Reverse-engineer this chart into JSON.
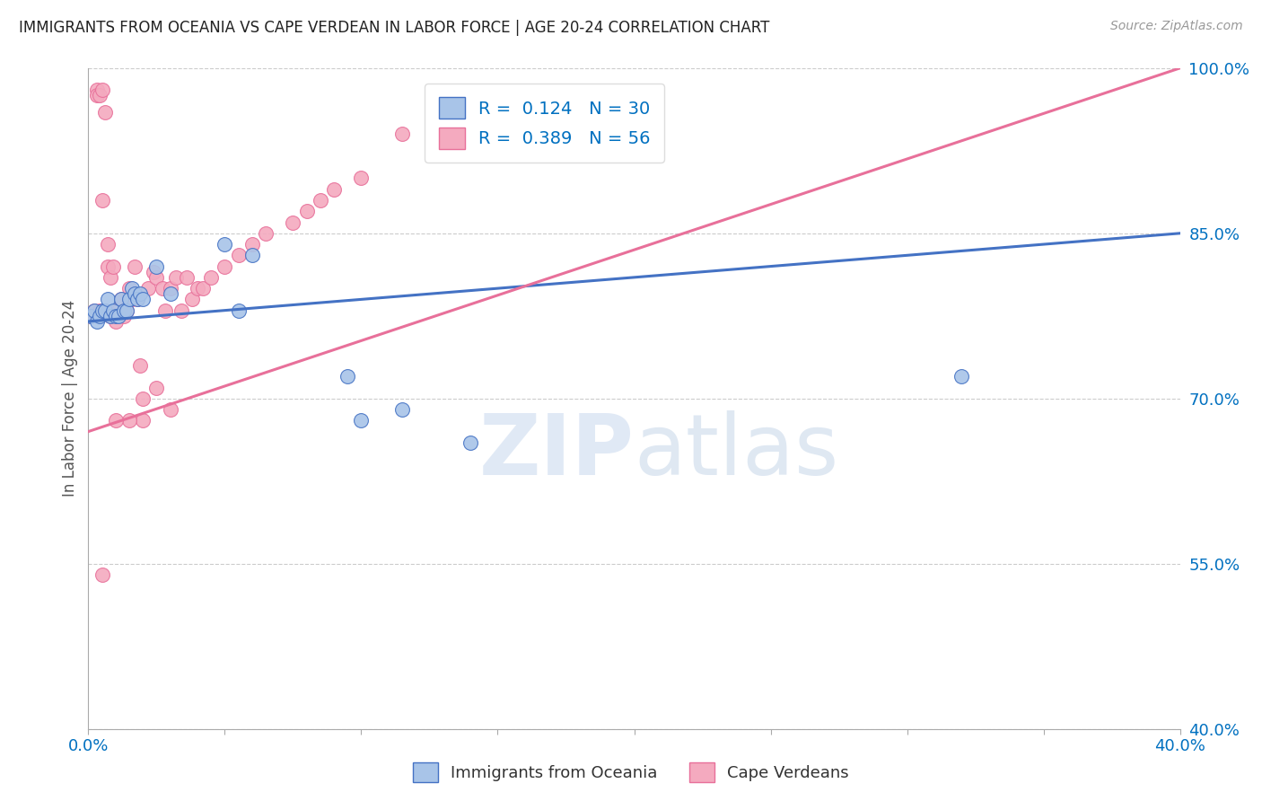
{
  "title": "IMMIGRANTS FROM OCEANIA VS CAPE VERDEAN IN LABOR FORCE | AGE 20-24 CORRELATION CHART",
  "source": "Source: ZipAtlas.com",
  "ylabel": "In Labor Force | Age 20-24",
  "legend_label1": "Immigrants from Oceania",
  "legend_label2": "Cape Verdeans",
  "r1": 0.124,
  "n1": 30,
  "r2": 0.389,
  "n2": 56,
  "xlim": [
    0.0,
    0.4
  ],
  "ylim": [
    0.4,
    1.0
  ],
  "xticks": [
    0.0,
    0.05,
    0.1,
    0.15,
    0.2,
    0.25,
    0.3,
    0.35,
    0.4
  ],
  "yticks": [
    0.4,
    0.55,
    0.7,
    0.85,
    1.0
  ],
  "color_blue": "#A8C4E8",
  "color_pink": "#F4AABF",
  "color_blue_line": "#4472C4",
  "color_pink_line": "#E8709A",
  "color_r_text": "#0070C0",
  "color_axis_text": "#0070C0",
  "background": "#FFFFFF",
  "watermark_zip": "ZIP",
  "watermark_atlas": "atlas",
  "oceania_x": [
    0.001,
    0.002,
    0.003,
    0.004,
    0.005,
    0.006,
    0.007,
    0.008,
    0.009,
    0.01,
    0.011,
    0.012,
    0.013,
    0.014,
    0.015,
    0.016,
    0.017,
    0.018,
    0.019,
    0.02,
    0.025,
    0.03,
    0.05,
    0.055,
    0.06,
    0.095,
    0.1,
    0.115,
    0.14,
    0.32
  ],
  "oceania_y": [
    0.775,
    0.78,
    0.77,
    0.775,
    0.78,
    0.78,
    0.79,
    0.775,
    0.78,
    0.775,
    0.775,
    0.79,
    0.78,
    0.78,
    0.79,
    0.8,
    0.795,
    0.79,
    0.795,
    0.79,
    0.82,
    0.795,
    0.84,
    0.78,
    0.83,
    0.72,
    0.68,
    0.69,
    0.66,
    0.72
  ],
  "capeverd_x": [
    0.001,
    0.002,
    0.003,
    0.003,
    0.004,
    0.004,
    0.005,
    0.005,
    0.006,
    0.006,
    0.007,
    0.007,
    0.008,
    0.008,
    0.009,
    0.01,
    0.01,
    0.011,
    0.012,
    0.013,
    0.014,
    0.015,
    0.016,
    0.017,
    0.018,
    0.019,
    0.02,
    0.022,
    0.024,
    0.025,
    0.027,
    0.028,
    0.03,
    0.032,
    0.034,
    0.036,
    0.038,
    0.04,
    0.042,
    0.045,
    0.05,
    0.055,
    0.06,
    0.065,
    0.075,
    0.08,
    0.085,
    0.09,
    0.1,
    0.115,
    0.02,
    0.025,
    0.03,
    0.015,
    0.01,
    0.005
  ],
  "capeverd_y": [
    0.775,
    0.78,
    0.98,
    0.975,
    0.975,
    0.78,
    0.98,
    0.88,
    0.96,
    0.78,
    0.84,
    0.82,
    0.81,
    0.775,
    0.82,
    0.78,
    0.77,
    0.78,
    0.79,
    0.775,
    0.78,
    0.8,
    0.79,
    0.82,
    0.79,
    0.73,
    0.7,
    0.8,
    0.815,
    0.81,
    0.8,
    0.78,
    0.8,
    0.81,
    0.78,
    0.81,
    0.79,
    0.8,
    0.8,
    0.81,
    0.82,
    0.83,
    0.84,
    0.85,
    0.86,
    0.87,
    0.88,
    0.89,
    0.9,
    0.94,
    0.68,
    0.71,
    0.69,
    0.68,
    0.68,
    0.54
  ],
  "line1_x0": 0.0,
  "line1_y0": 0.77,
  "line1_x1": 0.4,
  "line1_y1": 0.85,
  "line2_x0": 0.0,
  "line2_y0": 0.67,
  "line2_x1": 0.4,
  "line2_y1": 1.0
}
